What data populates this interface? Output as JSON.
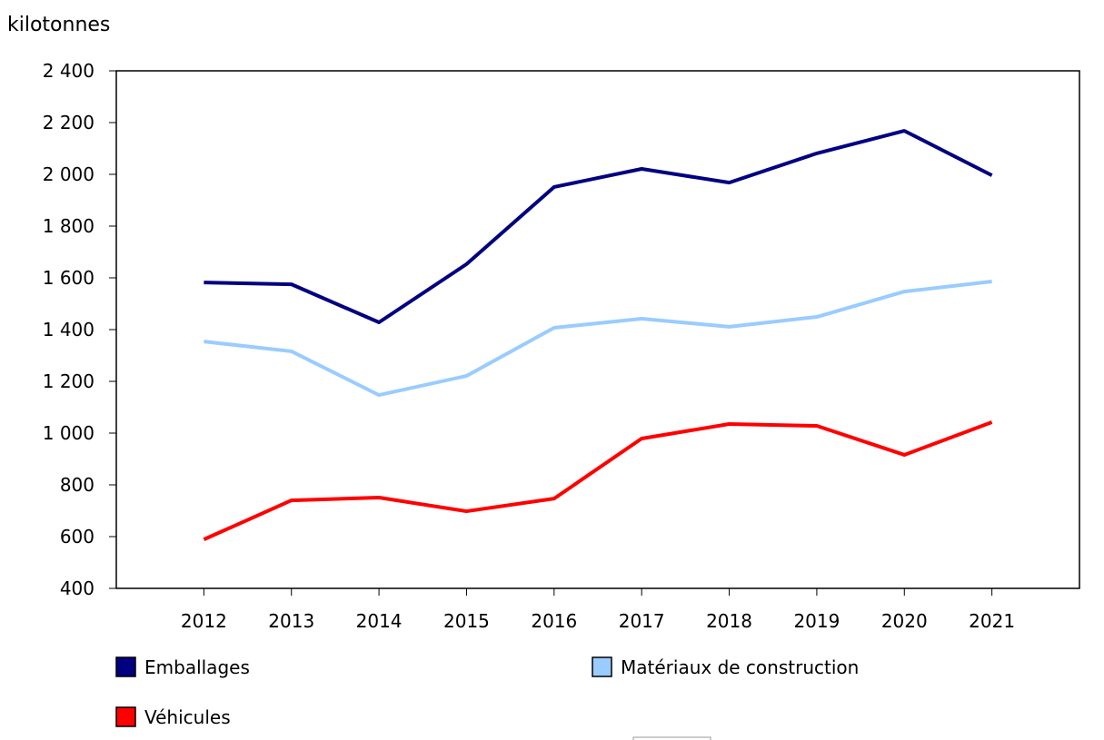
{
  "chart_data": {
    "type": "line",
    "ylabel": "kilotonnes",
    "categories": [
      "2012",
      "2013",
      "2014",
      "2015",
      "2016",
      "2017",
      "2018",
      "2019",
      "2020",
      "2021"
    ],
    "ylim": [
      400,
      2400
    ],
    "yticks": [
      400,
      600,
      800,
      1000,
      1200,
      1400,
      1600,
      1800,
      2000,
      2200,
      2400
    ],
    "ytick_labels": [
      "400",
      "600",
      "800",
      "1 000",
      "1 200",
      "1 400",
      "1 600",
      "1 800",
      "2 000",
      "2 200",
      "2 400"
    ],
    "grid": false,
    "legend_position": "bottom",
    "series": [
      {
        "name": "Emballages",
        "color": "#000080",
        "values": [
          1582,
          1575,
          1428,
          1653,
          1951,
          2021,
          1968,
          2081,
          2168,
          1996
        ]
      },
      {
        "name": "Matériaux de construction",
        "color": "#99ccff",
        "values": [
          1354,
          1316,
          1147,
          1221,
          1407,
          1442,
          1411,
          1449,
          1547,
          1586
        ]
      },
      {
        "name": "Véhicules",
        "color": "#ff0000",
        "values": [
          589,
          740,
          751,
          698,
          747,
          979,
          1035,
          1028,
          916,
          1042
        ]
      }
    ]
  }
}
